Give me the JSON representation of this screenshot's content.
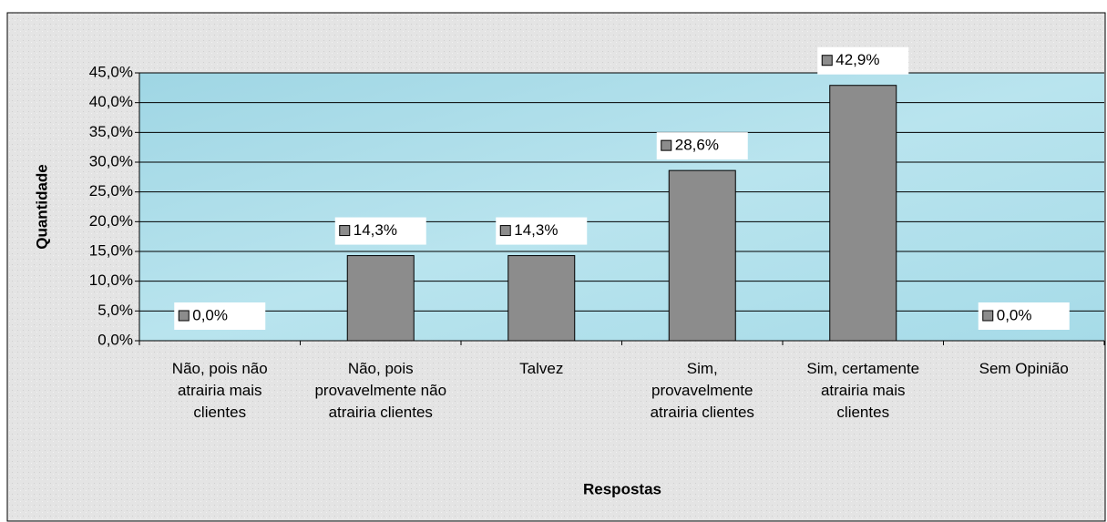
{
  "chart_data": {
    "type": "bar",
    "categories": [
      "Não, pois não atrairia mais clientes",
      "Não, pois provavelmente não atrairia clientes",
      "Talvez",
      "Sim, provavelmente atrairia clientes",
      "Sim, certamente atrairia mais clientes",
      "Sem Opinião"
    ],
    "values": [
      0,
      14.3,
      14.3,
      28.6,
      42.9,
      0
    ],
    "value_labels": [
      "0,0%",
      "14,3%",
      "14,3%",
      "28,6%",
      "42,9%",
      "0,0%"
    ],
    "color": "#8c8c8c",
    "ylim": [
      0,
      45
    ],
    "yticks": [
      {
        "value": 0,
        "label": "0,0%"
      },
      {
        "value": 5,
        "label": "5,0%"
      },
      {
        "value": 10,
        "label": "10,0%"
      },
      {
        "value": 15,
        "label": "15,0%"
      },
      {
        "value": 20,
        "label": "20,0%"
      },
      {
        "value": 25,
        "label": "25,0%"
      },
      {
        "value": 30,
        "label": "30,0%"
      },
      {
        "value": 35,
        "label": "35,0%"
      },
      {
        "value": 40,
        "label": "40,0%"
      },
      {
        "value": 45,
        "label": "45,0%"
      }
    ],
    "grid": true,
    "x_label": "Respostas",
    "y_label": "Quantidade"
  }
}
